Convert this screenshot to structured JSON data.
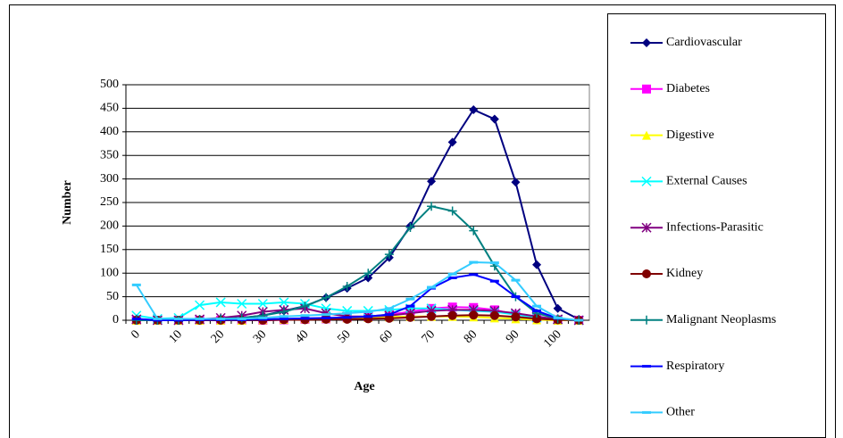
{
  "chart_data": {
    "type": "line",
    "x_label": "Age",
    "y_label": "Number",
    "categories": [
      0,
      null,
      10,
      null,
      20,
      null,
      30,
      null,
      40,
      null,
      50,
      null,
      60,
      null,
      70,
      null,
      80,
      null,
      90,
      null,
      100,
      null
    ],
    "ylim": [
      0,
      500
    ],
    "yticks": [
      0,
      50,
      100,
      150,
      200,
      250,
      300,
      350,
      400,
      450,
      500
    ],
    "grid": true,
    "legend": "right",
    "series": [
      {
        "name": "Cardiovascular",
        "color": "#000080",
        "marker": "diamond",
        "values": [
          2,
          0,
          0,
          2,
          3,
          5,
          10,
          20,
          30,
          48,
          68,
          90,
          133,
          200,
          295,
          378,
          447,
          427,
          293,
          118,
          25,
          2
        ]
      },
      {
        "name": "Diabetes",
        "color": "#ff00ff",
        "marker": "square",
        "values": [
          0,
          0,
          0,
          0,
          0,
          0,
          0,
          1,
          2,
          3,
          5,
          8,
          12,
          18,
          25,
          28,
          27,
          22,
          12,
          5,
          1,
          0
        ]
      },
      {
        "name": "Digestive",
        "color": "#ffff00",
        "marker": "triangle",
        "values": [
          0,
          0,
          0,
          0,
          0,
          0,
          1,
          2,
          3,
          4,
          5,
          6,
          7,
          8,
          8,
          8,
          7,
          5,
          3,
          1,
          0,
          0
        ]
      },
      {
        "name": "External Causes",
        "color": "#00ffff",
        "marker": "x",
        "values": [
          10,
          3,
          5,
          32,
          38,
          35,
          35,
          38,
          35,
          25,
          20,
          20,
          22,
          25,
          25,
          22,
          20,
          18,
          12,
          6,
          2,
          0
        ]
      },
      {
        "name": "Infections-Parasitic",
        "color": "#800080",
        "marker": "star",
        "values": [
          2,
          0,
          0,
          2,
          5,
          10,
          18,
          22,
          25,
          15,
          8,
          8,
          10,
          15,
          20,
          22,
          22,
          20,
          15,
          8,
          2,
          0
        ]
      },
      {
        "name": "Kidney",
        "color": "#800000",
        "marker": "circle",
        "values": [
          0,
          0,
          0,
          0,
          0,
          0,
          0,
          1,
          1,
          2,
          2,
          3,
          4,
          6,
          8,
          10,
          11,
          10,
          7,
          3,
          1,
          0
        ]
      },
      {
        "name": "Malignant Neoplasms",
        "color": "#008080",
        "marker": "plus",
        "values": [
          0,
          0,
          0,
          2,
          3,
          5,
          10,
          18,
          30,
          48,
          72,
          100,
          140,
          197,
          242,
          232,
          190,
          115,
          50,
          15,
          3,
          0
        ]
      },
      {
        "name": "Respiratory",
        "color": "#0000ff",
        "marker": "dash",
        "values": [
          3,
          0,
          0,
          1,
          1,
          1,
          2,
          3,
          4,
          5,
          6,
          8,
          12,
          30,
          68,
          90,
          97,
          83,
          50,
          20,
          4,
          0
        ]
      },
      {
        "name": "Other",
        "color": "#33ccff",
        "marker": "dash",
        "values": [
          75,
          3,
          3,
          3,
          3,
          3,
          5,
          8,
          10,
          12,
          15,
          18,
          25,
          45,
          70,
          98,
          123,
          122,
          85,
          30,
          5,
          0
        ]
      }
    ]
  }
}
